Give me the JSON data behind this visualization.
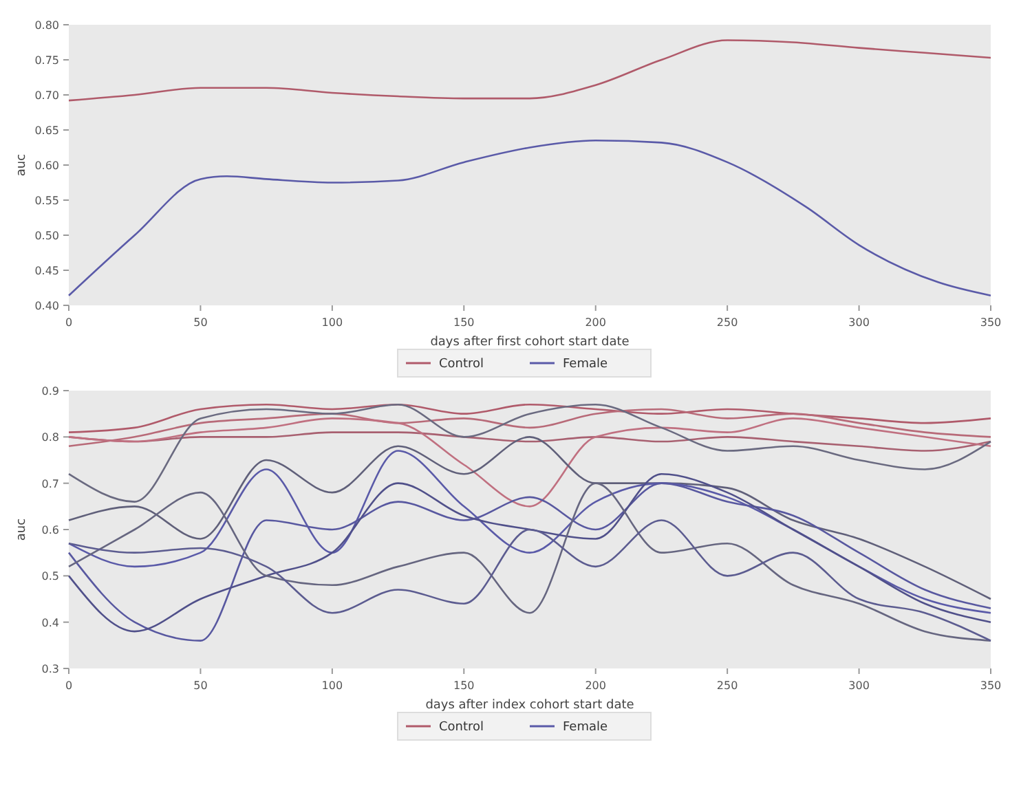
{
  "chart_data": [
    {
      "type": "line",
      "xlabel": "days after first cohort start date",
      "ylabel": "auc",
      "xlim": [
        0,
        350
      ],
      "xticks": [
        0,
        50,
        100,
        150,
        200,
        250,
        300,
        350
      ],
      "ylim": [
        0.4,
        0.8
      ],
      "yticks": [
        {
          "value": 0.4,
          "label": "0.40"
        },
        {
          "value": 0.45,
          "label": "0.45"
        },
        {
          "value": 0.5,
          "label": "0.50"
        },
        {
          "value": 0.55,
          "label": "0.55"
        },
        {
          "value": 0.6,
          "label": "0.60"
        },
        {
          "value": 0.65,
          "label": "0.65"
        },
        {
          "value": 0.7,
          "label": "0.70"
        },
        {
          "value": 0.75,
          "label": "0.75"
        },
        {
          "value": 0.8,
          "label": "0.80"
        }
      ],
      "legend": "bottom",
      "grid": false,
      "series": [
        {
          "name": "Control",
          "color": "#b05a6a",
          "x": [
            0,
            25,
            50,
            75,
            100,
            125,
            150,
            175,
            200,
            225,
            250,
            275,
            300,
            325,
            350
          ],
          "values": [
            0.692,
            0.7,
            0.71,
            0.71,
            0.703,
            0.698,
            0.695,
            0.695,
            0.714,
            0.75,
            0.778,
            0.775,
            0.767,
            0.76,
            0.753
          ]
        },
        {
          "name": "Female",
          "color": "#5a5aa8",
          "x": [
            0,
            25,
            50,
            60,
            75,
            100,
            125,
            150,
            175,
            200,
            225,
            250,
            280,
            300,
            330,
            350
          ],
          "values": [
            0.414,
            0.5,
            0.58,
            0.584,
            0.58,
            0.575,
            0.578,
            0.604,
            0.625,
            0.635,
            0.632,
            0.604,
            0.54,
            0.486,
            0.433,
            0.414
          ]
        }
      ]
    },
    {
      "type": "line",
      "xlabel": "days after index cohort start date",
      "ylabel": "auc",
      "xlim": [
        0,
        350
      ],
      "xticks": [
        0,
        50,
        100,
        150,
        200,
        250,
        300,
        350
      ],
      "ylim": [
        0.3,
        0.9
      ],
      "yticks": [
        {
          "value": 0.3,
          "label": "0.3"
        },
        {
          "value": 0.4,
          "label": "0.4"
        },
        {
          "value": 0.5,
          "label": "0.5"
        },
        {
          "value": 0.6,
          "label": "0.6"
        },
        {
          "value": 0.7,
          "label": "0.7"
        },
        {
          "value": 0.8,
          "label": "0.8"
        },
        {
          "value": 0.9,
          "label": "0.9"
        }
      ],
      "legend": "bottom",
      "grid": false,
      "x": [
        0,
        25,
        50,
        75,
        100,
        125,
        150,
        175,
        200,
        225,
        250,
        275,
        300,
        325,
        350
      ],
      "series": [
        {
          "name": "Control",
          "color": "#b05a6a",
          "values": [
            0.81,
            0.82,
            0.86,
            0.87,
            0.86,
            0.87,
            0.85,
            0.87,
            0.86,
            0.85,
            0.86,
            0.85,
            0.84,
            0.83,
            0.84
          ]
        },
        {
          "color": "#b86a78",
          "values": [
            0.78,
            0.8,
            0.83,
            0.84,
            0.85,
            0.83,
            0.84,
            0.82,
            0.85,
            0.86,
            0.84,
            0.85,
            0.83,
            0.81,
            0.8
          ]
        },
        {
          "color": "#a86070",
          "values": [
            0.8,
            0.79,
            0.8,
            0.8,
            0.81,
            0.81,
            0.8,
            0.79,
            0.8,
            0.79,
            0.8,
            0.79,
            0.78,
            0.77,
            0.79
          ]
        },
        {
          "color": "#c07080",
          "values": [
            0.8,
            0.79,
            0.81,
            0.82,
            0.84,
            0.83,
            0.74,
            0.65,
            0.8,
            0.82,
            0.81,
            0.84,
            0.82,
            0.8,
            0.78
          ]
        },
        {
          "color": "#6a6a80",
          "values": [
            0.72,
            0.66,
            0.84,
            0.86,
            0.85,
            0.87,
            0.8,
            0.85,
            0.87,
            0.82,
            0.77,
            0.78,
            0.75,
            0.73,
            0.79
          ]
        },
        {
          "color": "#60607a",
          "values": [
            0.62,
            0.65,
            0.58,
            0.75,
            0.68,
            0.78,
            0.72,
            0.8,
            0.7,
            0.7,
            0.69,
            0.62,
            0.58,
            0.52,
            0.45
          ]
        },
        {
          "name": "Female",
          "color": "#5a5aa8",
          "values": [
            0.57,
            0.52,
            0.55,
            0.73,
            0.55,
            0.77,
            0.65,
            0.55,
            0.66,
            0.7,
            0.67,
            0.6,
            0.52,
            0.45,
            0.42
          ]
        },
        {
          "color": "#5858a0",
          "values": [
            0.55,
            0.4,
            0.36,
            0.62,
            0.6,
            0.66,
            0.62,
            0.67,
            0.6,
            0.7,
            0.66,
            0.63,
            0.55,
            0.47,
            0.43
          ]
        },
        {
          "color": "#50508a",
          "values": [
            0.5,
            0.38,
            0.45,
            0.5,
            0.55,
            0.7,
            0.63,
            0.6,
            0.58,
            0.72,
            0.68,
            0.6,
            0.52,
            0.44,
            0.4
          ]
        },
        {
          "color": "#666680",
          "values": [
            0.52,
            0.6,
            0.68,
            0.5,
            0.48,
            0.52,
            0.55,
            0.42,
            0.7,
            0.55,
            0.57,
            0.48,
            0.44,
            0.38,
            0.36
          ]
        },
        {
          "color": "#5c5c90",
          "values": [
            0.57,
            0.55,
            0.56,
            0.52,
            0.42,
            0.47,
            0.44,
            0.6,
            0.52,
            0.62,
            0.5,
            0.55,
            0.45,
            0.42,
            0.36
          ]
        }
      ]
    }
  ]
}
